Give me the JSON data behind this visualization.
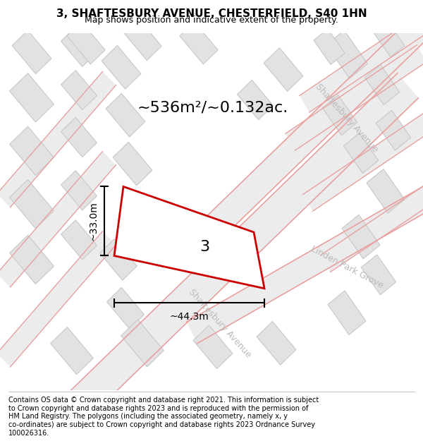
{
  "title": "3, SHAFTESBURY AVENUE, CHESTERFIELD, S40 1HN",
  "subtitle": "Map shows position and indicative extent of the property.",
  "footer_lines": [
    "Contains OS data © Crown copyright and database right 2021. This information is subject",
    "to Crown copyright and database rights 2023 and is reproduced with the permission of",
    "HM Land Registry. The polygons (including the associated geometry, namely x, y",
    "co-ordinates) are subject to Crown copyright and database rights 2023 Ordnance Survey",
    "100026316."
  ],
  "area_label": "~536m²/~0.132ac.",
  "width_label": "~44.3m",
  "height_label": "~33.0m",
  "plot_number": "3",
  "plot_outline_color": "#cc0000",
  "title_fontsize": 11,
  "subtitle_fontsize": 9,
  "footer_fontsize": 7,
  "area_label_fontsize": 16,
  "dimension_fontsize": 10,
  "plot_number_fontsize": 16,
  "road_label_color": "#bbbbbb",
  "road_label_fontsize": 9,
  "road_line_color": "#e8a0a0",
  "building_fill": "#e2e2e2",
  "building_edge": "#c8c8c8",
  "map_bg": "#f2f2f2"
}
